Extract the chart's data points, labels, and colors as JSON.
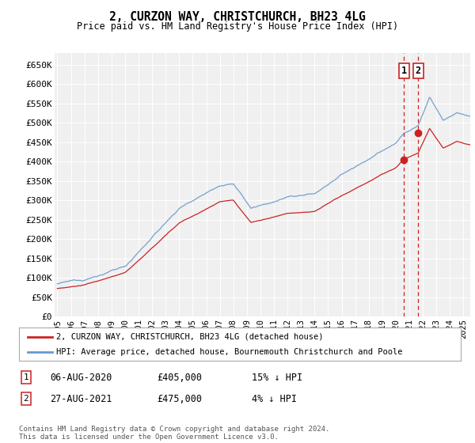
{
  "title": "2, CURZON WAY, CHRISTCHURCH, BH23 4LG",
  "subtitle": "Price paid vs. HM Land Registry's House Price Index (HPI)",
  "ylim": [
    0,
    680000
  ],
  "yticks": [
    0,
    50000,
    100000,
    150000,
    200000,
    250000,
    300000,
    350000,
    400000,
    450000,
    500000,
    550000,
    600000,
    650000
  ],
  "ytick_labels": [
    "£0",
    "£50K",
    "£100K",
    "£150K",
    "£200K",
    "£250K",
    "£300K",
    "£350K",
    "£400K",
    "£450K",
    "£500K",
    "£550K",
    "£600K",
    "£650K"
  ],
  "hpi_color": "#6699cc",
  "price_color": "#cc2222",
  "dashed_color": "#cc2222",
  "sale1_date": 2020.59,
  "sale1_price": 405000,
  "sale2_date": 2021.65,
  "sale2_price": 475000,
  "legend_entries": [
    "2, CURZON WAY, CHRISTCHURCH, BH23 4LG (detached house)",
    "HPI: Average price, detached house, Bournemouth Christchurch and Poole"
  ],
  "table_rows": [
    {
      "num": "1",
      "date": "06-AUG-2020",
      "price": "£405,000",
      "hpi": "15% ↓ HPI"
    },
    {
      "num": "2",
      "date": "27-AUG-2021",
      "price": "£475,000",
      "hpi": "4% ↓ HPI"
    }
  ],
  "footnote": "Contains HM Land Registry data © Crown copyright and database right 2024.\nThis data is licensed under the Open Government Licence v3.0.",
  "background_color": "#ffffff",
  "plot_bg_color": "#f0f0f0",
  "grid_color": "#ffffff"
}
